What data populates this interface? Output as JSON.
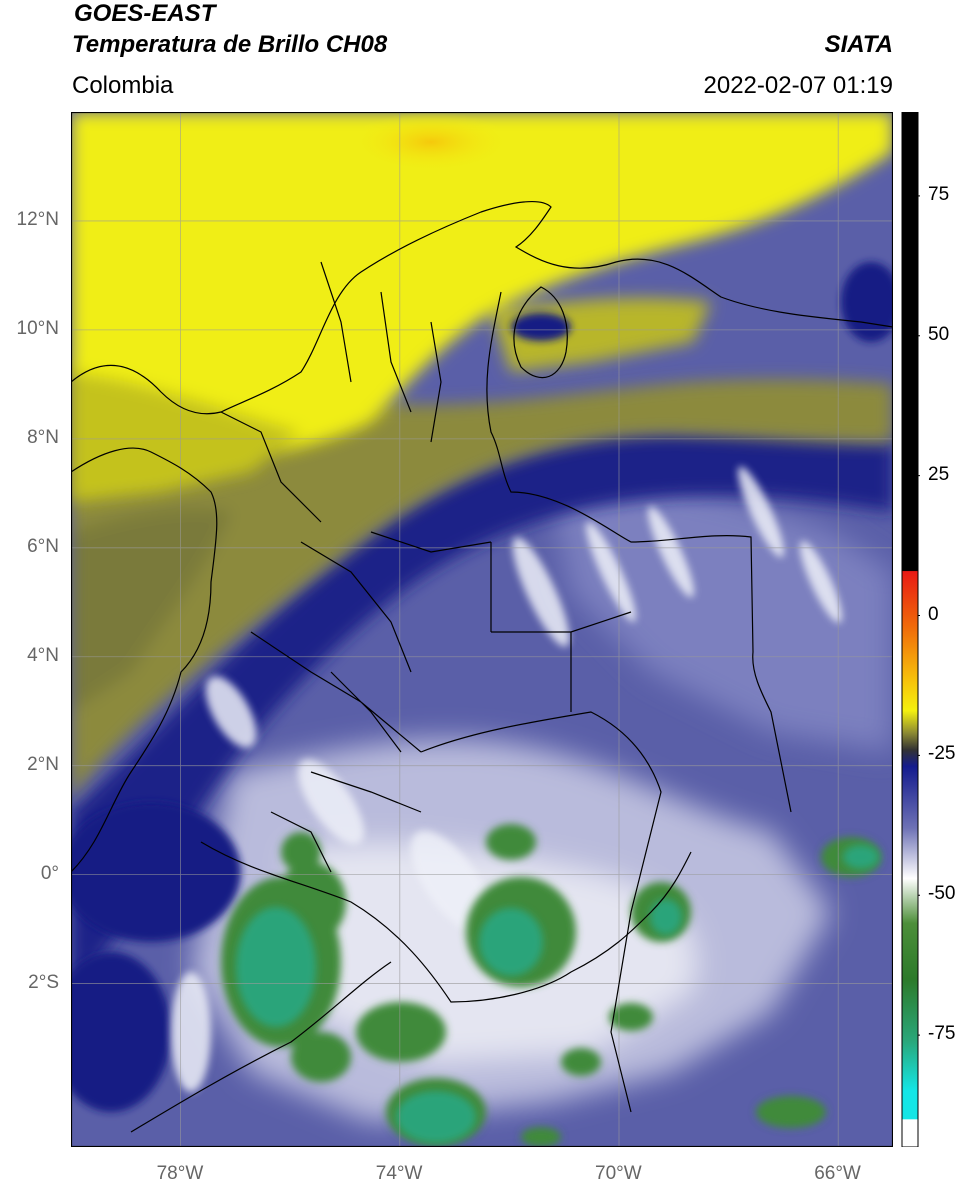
{
  "header": {
    "satellite": "GOES-EAST",
    "product": "Temperatura de Brillo CH08",
    "region": "Colombia",
    "agency": "SIATA",
    "timestamp": "2022-02-07 01:19"
  },
  "map": {
    "lon_range": [
      -80,
      -65
    ],
    "lat_range": [
      -5,
      14
    ],
    "lon_ticks": [
      {
        "value": -78,
        "label": "78°W"
      },
      {
        "value": -74,
        "label": "74°W"
      },
      {
        "value": -70,
        "label": "70°W"
      },
      {
        "value": -66,
        "label": "66°W"
      }
    ],
    "lat_ticks": [
      {
        "value": 12,
        "label": "12°N"
      },
      {
        "value": 10,
        "label": "10°N"
      },
      {
        "value": 8,
        "label": "8°N"
      },
      {
        "value": 6,
        "label": "6°N"
      },
      {
        "value": 4,
        "label": "4°N"
      },
      {
        "value": 2,
        "label": "2°N"
      },
      {
        "value": 0,
        "label": "0°"
      },
      {
        "value": -2,
        "label": "2°S"
      }
    ],
    "grid": true,
    "colors": {
      "warm_yellow": "#f2ef12",
      "olive": "#8d8a3b",
      "navy": "#1d2386",
      "slate_blue": "#4c529e",
      "pale": "#dfe1f0",
      "green": "#3f8a3a",
      "teal": "#2aa47a"
    }
  },
  "colorbar": {
    "vmin": -95,
    "vmax": 90,
    "ticks": [
      {
        "value": 75,
        "label": "75"
      },
      {
        "value": 50,
        "label": "50"
      },
      {
        "value": 25,
        "label": "25"
      },
      {
        "value": 0,
        "label": "0"
      },
      {
        "value": -25,
        "label": "-25"
      },
      {
        "value": -50,
        "label": "-50"
      },
      {
        "value": -75,
        "label": "-75"
      }
    ],
    "stops": [
      {
        "value": 90,
        "color": "#000000"
      },
      {
        "value": 8,
        "color": "#000000"
      },
      {
        "value": 7.9,
        "color": "#e81a14"
      },
      {
        "value": -2,
        "color": "#f06a0a"
      },
      {
        "value": -12,
        "color": "#f7c60b"
      },
      {
        "value": -17,
        "color": "#f4f10f"
      },
      {
        "value": -21,
        "color": "#8c8a32"
      },
      {
        "value": -24,
        "color": "#333333"
      },
      {
        "value": -27,
        "color": "#141b8e"
      },
      {
        "value": -38,
        "color": "#6e72b5"
      },
      {
        "value": -47,
        "color": "#ffffff"
      },
      {
        "value": -55,
        "color": "#4d8f3a"
      },
      {
        "value": -65,
        "color": "#2c7a2a"
      },
      {
        "value": -76,
        "color": "#2aa77a"
      },
      {
        "value": -85,
        "color": "#14e6e6"
      },
      {
        "value": -90,
        "color": "#14e6e6"
      },
      {
        "value": -90.1,
        "color": "#ffffff"
      },
      {
        "value": -95,
        "color": "#ffffff"
      }
    ]
  }
}
